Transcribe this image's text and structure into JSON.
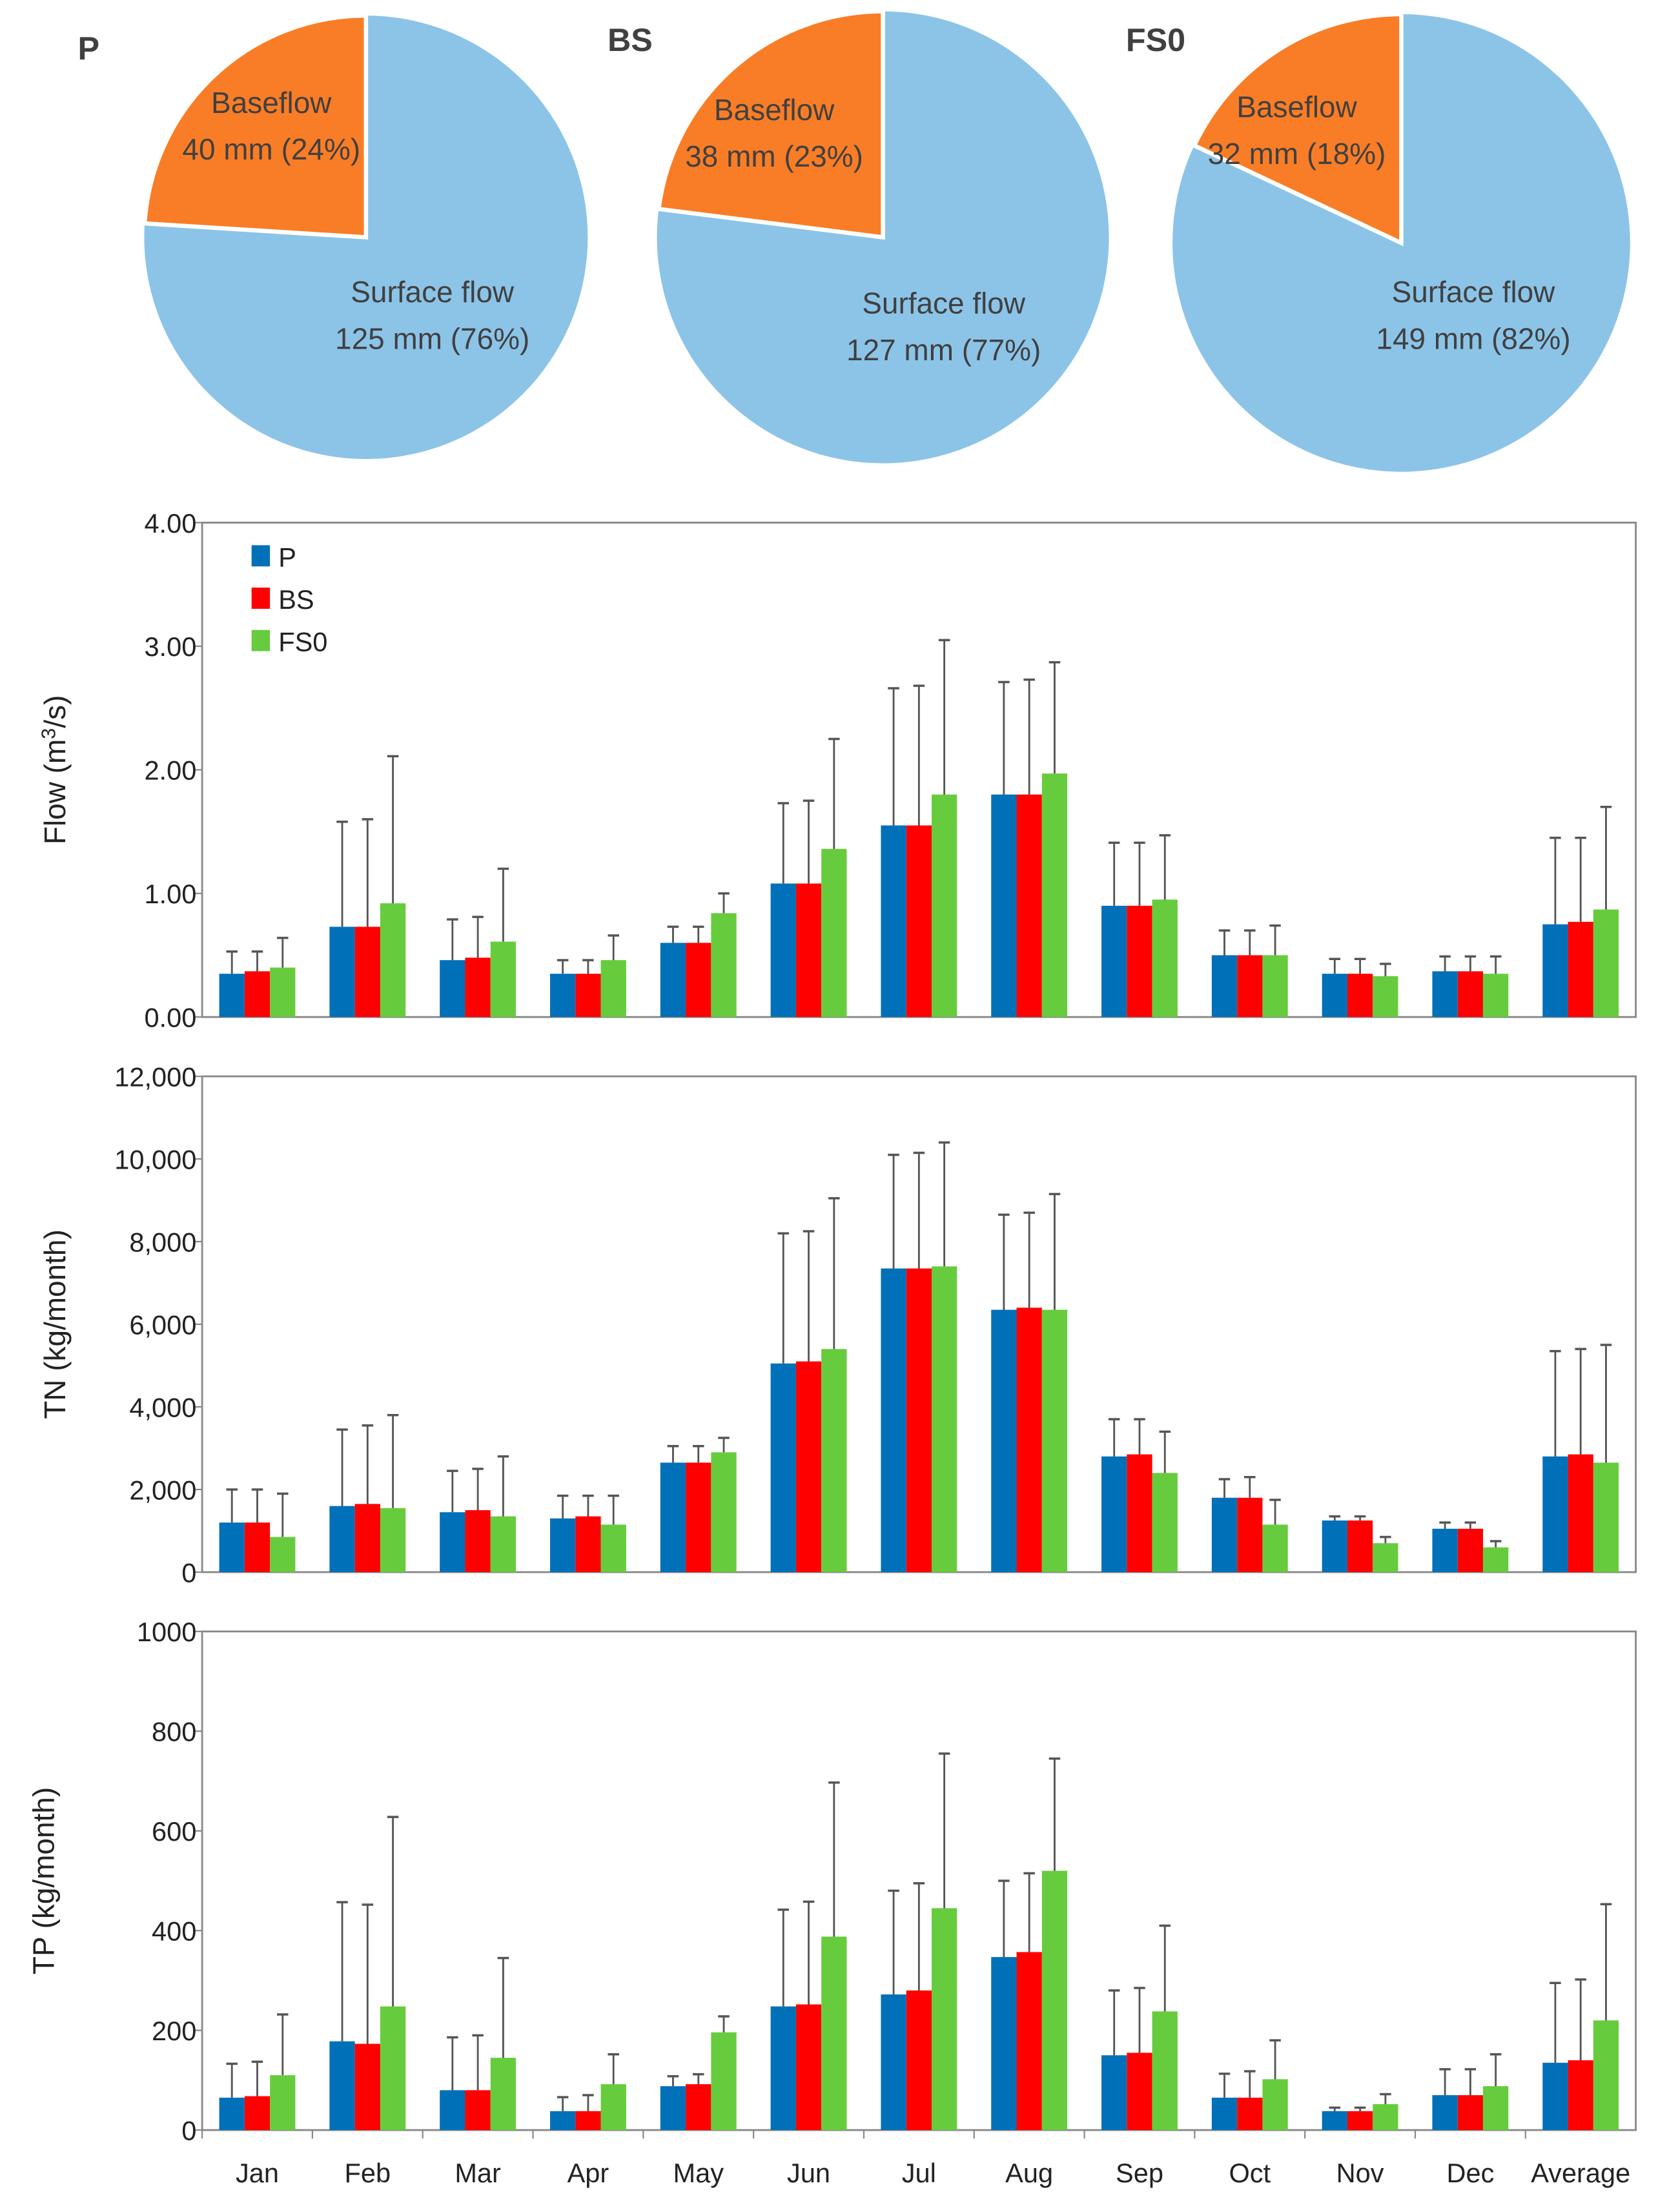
{
  "colors": {
    "P": "#0070B8",
    "BS": "#FF0000",
    "FS0": "#66CC3D",
    "baseflow": "#F97D26",
    "surface": "#8CC4E8",
    "error": "#555555"
  },
  "pies": [
    {
      "title": "P",
      "slices": [
        {
          "name": "Baseflow",
          "label": "40 mm (24%)",
          "value": 40,
          "percent": 24
        },
        {
          "name": "Surface flow",
          "label": "125 mm (76%)",
          "value": 125,
          "percent": 76
        }
      ]
    },
    {
      "title": "BS",
      "slices": [
        {
          "name": "Baseflow",
          "label": "38 mm (23%)",
          "value": 38,
          "percent": 23
        },
        {
          "name": "Surface flow",
          "label": "127 mm (77%)",
          "value": 127,
          "percent": 77
        }
      ]
    },
    {
      "title": "FS0",
      "slices": [
        {
          "name": "Baseflow",
          "label": "32 mm (18%)",
          "value": 32,
          "percent": 18
        },
        {
          "name": "Surface flow",
          "label": "149 mm (82%)",
          "value": 149,
          "percent": 82
        }
      ]
    }
  ],
  "chart_data": [
    {
      "type": "bar",
      "ylabel": "Flow (m3/s)",
      "ylabel_parts": [
        "Flow (m",
        "3",
        "/s)"
      ],
      "ylim": [
        0,
        4
      ],
      "yticks": [
        "0.00",
        "1.00",
        "2.00",
        "3.00",
        "4.00"
      ],
      "ytick_values": [
        0,
        1,
        2,
        3,
        4
      ],
      "legend": [
        "P",
        "BS",
        "FS0"
      ],
      "legend_position": "top-left",
      "categories": [
        "Jan",
        "Feb",
        "Mar",
        "Apr",
        "May",
        "Jun",
        "Jul",
        "Aug",
        "Sep",
        "Oct",
        "Nov",
        "Dec",
        "Average"
      ],
      "series": [
        {
          "name": "P",
          "values": [
            0.35,
            0.73,
            0.46,
            0.35,
            0.6,
            1.08,
            1.55,
            1.8,
            0.9,
            0.5,
            0.35,
            0.37,
            0.75
          ],
          "upper": [
            0.53,
            1.58,
            0.79,
            0.46,
            0.73,
            1.73,
            2.66,
            2.71,
            1.41,
            0.7,
            0.47,
            0.49,
            1.45
          ]
        },
        {
          "name": "BS",
          "values": [
            0.37,
            0.73,
            0.48,
            0.35,
            0.6,
            1.08,
            1.55,
            1.8,
            0.9,
            0.5,
            0.35,
            0.37,
            0.77
          ],
          "upper": [
            0.53,
            1.6,
            0.81,
            0.46,
            0.73,
            1.75,
            2.68,
            2.73,
            1.41,
            0.7,
            0.47,
            0.49,
            1.45
          ]
        },
        {
          "name": "FS0",
          "values": [
            0.4,
            0.92,
            0.61,
            0.46,
            0.84,
            1.36,
            1.8,
            1.97,
            0.95,
            0.5,
            0.33,
            0.35,
            0.87
          ],
          "upper": [
            0.64,
            2.11,
            1.2,
            0.66,
            1.0,
            2.25,
            3.05,
            2.87,
            1.47,
            0.74,
            0.43,
            0.49,
            1.7
          ]
        }
      ]
    },
    {
      "type": "bar",
      "ylabel": "TN (kg/month)",
      "ylim": [
        0,
        12000
      ],
      "yticks": [
        "0",
        "2,000",
        "4,000",
        "6,000",
        "8,000",
        "10,000",
        "12,000"
      ],
      "ytick_values": [
        0,
        2000,
        4000,
        6000,
        8000,
        10000,
        12000
      ],
      "categories": [
        "Jan",
        "Feb",
        "Mar",
        "Apr",
        "May",
        "Jun",
        "Jul",
        "Aug",
        "Sep",
        "Oct",
        "Nov",
        "Dec",
        "Average"
      ],
      "series": [
        {
          "name": "P",
          "values": [
            1200,
            1600,
            1450,
            1300,
            2650,
            5050,
            7350,
            6350,
            2800,
            1800,
            1250,
            1050,
            2800
          ],
          "upper": [
            2000,
            3450,
            2450,
            1850,
            3050,
            8200,
            10100,
            8650,
            3700,
            2250,
            1350,
            1200,
            5350
          ]
        },
        {
          "name": "BS",
          "values": [
            1200,
            1650,
            1500,
            1350,
            2650,
            5100,
            7350,
            6400,
            2850,
            1800,
            1250,
            1050,
            2850
          ],
          "upper": [
            2000,
            3550,
            2500,
            1850,
            3050,
            8250,
            10150,
            8700,
            3700,
            2300,
            1350,
            1200,
            5400
          ]
        },
        {
          "name": "FS0",
          "values": [
            850,
            1550,
            1350,
            1150,
            2900,
            5400,
            7400,
            6350,
            2400,
            1150,
            700,
            600,
            2650
          ],
          "upper": [
            1900,
            3800,
            2800,
            1850,
            3250,
            9050,
            10400,
            9150,
            3400,
            1750,
            850,
            750,
            5500
          ]
        }
      ]
    },
    {
      "type": "bar",
      "ylabel": "TP (kg/month)",
      "ylim": [
        0,
        1000
      ],
      "yticks": [
        "0",
        "200",
        "400",
        "600",
        "800",
        "1000"
      ],
      "ytick_values": [
        0,
        200,
        400,
        600,
        800,
        1000
      ],
      "categories": [
        "Jan",
        "Feb",
        "Mar",
        "Apr",
        "May",
        "Jun",
        "Jul",
        "Aug",
        "Sep",
        "Oct",
        "Nov",
        "Dec",
        "Average"
      ],
      "xtick_labels": [
        "Jan",
        "Feb",
        "Mar",
        "Apr",
        "May",
        "Jun",
        "Jul",
        "Aug",
        "Sep",
        "Oct",
        "Nov",
        "Dec",
        "Average"
      ],
      "series": [
        {
          "name": "P",
          "values": [
            65,
            178,
            80,
            38,
            88,
            248,
            272,
            347,
            150,
            65,
            38,
            70,
            135
          ],
          "upper": [
            133,
            457,
            186,
            66,
            108,
            442,
            480,
            500,
            280,
            113,
            45,
            122,
            295
          ]
        },
        {
          "name": "BS",
          "values": [
            68,
            173,
            80,
            38,
            92,
            252,
            280,
            357,
            155,
            65,
            38,
            70,
            140
          ],
          "upper": [
            137,
            452,
            190,
            70,
            112,
            458,
            495,
            515,
            285,
            118,
            45,
            122,
            302
          ]
        },
        {
          "name": "FS0",
          "values": [
            110,
            248,
            145,
            92,
            196,
            388,
            445,
            520,
            238,
            102,
            52,
            88,
            220
          ],
          "upper": [
            232,
            628,
            345,
            152,
            228,
            697,
            755,
            745,
            410,
            180,
            72,
            152,
            453
          ]
        }
      ]
    }
  ]
}
